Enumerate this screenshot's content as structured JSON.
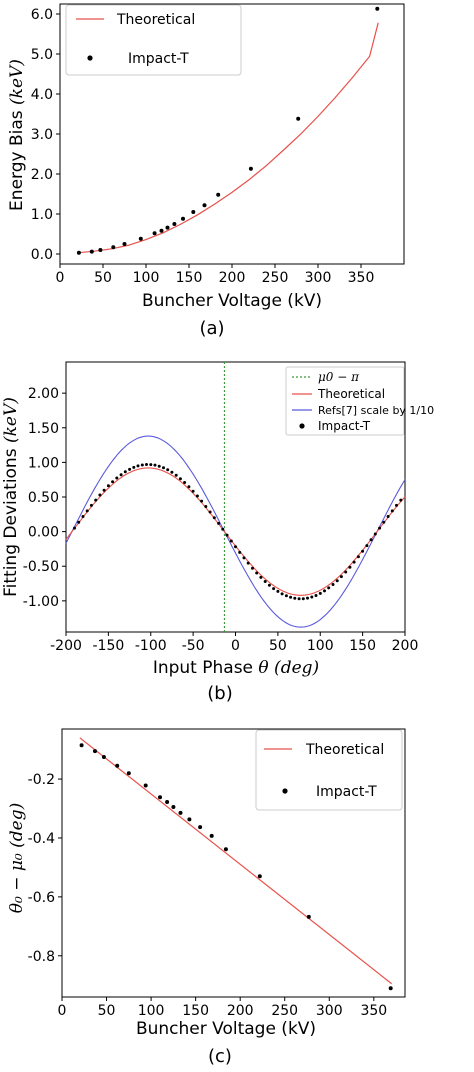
{
  "chart_data": [
    {
      "type": "line",
      "caption": "(a)",
      "xlabel": "Buncher Voltage (kV)",
      "ylabel_text": "Energy Bias ",
      "ylabel_math": "(keV)",
      "xlim": [
        0,
        400
      ],
      "ylim": [
        -0.25,
        6.25
      ],
      "xticks": [
        0,
        50,
        100,
        150,
        200,
        250,
        300,
        350
      ],
      "xtick_labels": [
        "0",
        "50",
        "100",
        "150",
        "200",
        "250",
        "300",
        "350"
      ],
      "yticks": [
        0,
        1,
        2,
        3,
        4,
        5,
        6
      ],
      "ytick_labels": [
        "0.0",
        "1.0",
        "2.0",
        "3.0",
        "4.0",
        "5.0",
        "6.0"
      ],
      "legend_position": "top-left",
      "series": [
        {
          "name": "Theoretical",
          "kind": "line",
          "color": "#e8504a",
          "x": [
            20,
            40,
            60,
            80,
            100,
            120,
            140,
            160,
            180,
            200,
            220,
            240,
            260,
            280,
            300,
            320,
            340,
            360,
            370
          ],
          "y": [
            0.03,
            0.07,
            0.13,
            0.22,
            0.36,
            0.53,
            0.74,
            0.98,
            1.25,
            1.54,
            1.86,
            2.21,
            2.6,
            3.0,
            3.44,
            3.91,
            4.41,
            4.94,
            5.78
          ]
        },
        {
          "name": "Impact-T",
          "kind": "scatter",
          "color": "#000000",
          "x": [
            22,
            37,
            47,
            62,
            75,
            94,
            110,
            118,
            125,
            133,
            143,
            155,
            168,
            184,
            222,
            277,
            369
          ],
          "y": [
            0.03,
            0.06,
            0.1,
            0.17,
            0.25,
            0.38,
            0.52,
            0.58,
            0.66,
            0.75,
            0.88,
            1.05,
            1.22,
            1.48,
            2.13,
            3.38,
            6.13
          ]
        }
      ]
    },
    {
      "type": "line",
      "caption": "(b)",
      "xlabel_text": "Input Phase ",
      "xlabel_math": "θ (deg)",
      "ylabel_text": "Fitting Deviations ",
      "ylabel_math": "(keV)",
      "xlim": [
        -200,
        200
      ],
      "ylim": [
        -1.45,
        2.45
      ],
      "xticks": [
        -200,
        -150,
        -100,
        -50,
        0,
        50,
        100,
        150,
        200
      ],
      "xtick_labels": [
        "-200",
        "-150",
        "-100",
        "-50",
        "0",
        "50",
        "100",
        "150",
        "200"
      ],
      "yticks": [
        -1,
        -0.5,
        0,
        0.5,
        1,
        1.5,
        2
      ],
      "ytick_labels": [
        "-1.00",
        "-0.50",
        "0.00",
        "0.50",
        "1.00",
        "1.50",
        "2.00"
      ],
      "legend_position": "top-right",
      "vline_x": -13,
      "series": [
        {
          "name": "μ0 − π",
          "kind": "vline",
          "color": "#3a9a3a"
        },
        {
          "name": "Theoretical",
          "kind": "sine",
          "color": "#e8504a",
          "amplitude": 0.92,
          "phase_zero_deg": -13
        },
        {
          "name": "Refs[7] scale by 1/10",
          "kind": "sine",
          "color": "#5b5bdc",
          "amplitude": 1.38,
          "phase_zero_deg": -13
        },
        {
          "name": "Impact-T",
          "kind": "scatter",
          "color": "#000000",
          "amplitude": 0.97,
          "phase_zero_deg": -13,
          "x_range": [
            -190,
            195
          ],
          "x_step": 5
        }
      ]
    },
    {
      "type": "line",
      "caption": "(c)",
      "xlabel": "Buncher Voltage (kV)",
      "ylabel_math": "θ₀ − μ₀ (deg)",
      "xlim": [
        0,
        385
      ],
      "ylim": [
        -0.94,
        -0.03
      ],
      "xticks": [
        0,
        50,
        100,
        150,
        200,
        250,
        300,
        350
      ],
      "xtick_labels": [
        "0",
        "50",
        "100",
        "150",
        "200",
        "250",
        "300",
        "350"
      ],
      "yticks": [
        -0.8,
        -0.6,
        -0.4,
        -0.2
      ],
      "ytick_labels": [
        "-0.8",
        "-0.6",
        "-0.4",
        "-0.2"
      ],
      "legend_position": "top-right",
      "series": [
        {
          "name": "Theoretical",
          "kind": "line",
          "color": "#e8504a",
          "x": [
            20,
            370
          ],
          "y": [
            -0.06,
            -0.895
          ]
        },
        {
          "name": "Impact-T",
          "kind": "scatter",
          "color": "#000000",
          "x": [
            22,
            37,
            47,
            62,
            75,
            94,
            110,
            118,
            125,
            133,
            143,
            155,
            168,
            184,
            222,
            277,
            369
          ],
          "y": [
            -0.085,
            -0.105,
            -0.125,
            -0.155,
            -0.18,
            -0.222,
            -0.262,
            -0.278,
            -0.295,
            -0.315,
            -0.337,
            -0.363,
            -0.393,
            -0.438,
            -0.53,
            -0.668,
            -0.91
          ]
        }
      ]
    }
  ]
}
